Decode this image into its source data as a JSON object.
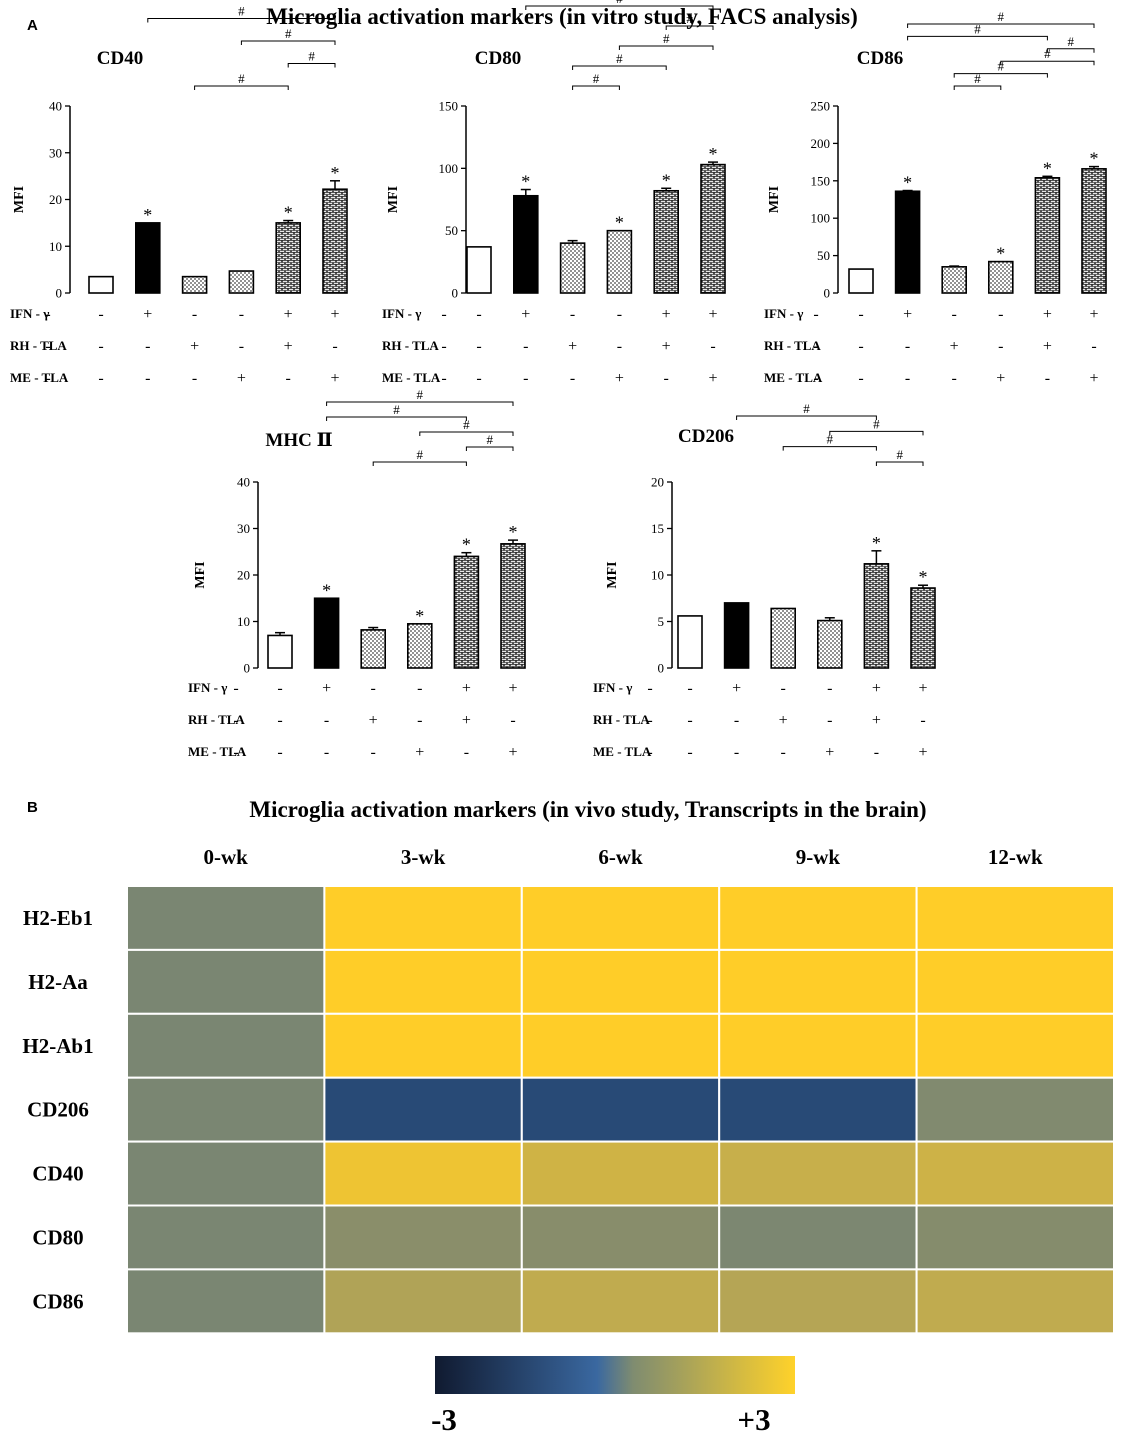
{
  "panel_a": {
    "letter": "A",
    "title": "Microglia activation markers (in vitro study, FACS analysis)",
    "treatments": [
      {
        "name": "IFN - γ",
        "signs": [
          "-",
          "+",
          "-",
          "-",
          "+",
          "+"
        ]
      },
      {
        "name": "RH - TLA",
        "signs": [
          "-",
          "-",
          "+",
          "-",
          "+",
          "-"
        ]
      },
      {
        "name": "ME - TLA",
        "signs": [
          "-",
          "-",
          "-",
          "+",
          "-",
          "+"
        ]
      }
    ]
  },
  "panel_b": {
    "letter": "B",
    "title": "Microglia activation markers (in vivo study, Transcripts in the brain)",
    "legend_min": "-3",
    "legend_max": "+3"
  },
  "colors": {
    "heat_low": "#101a30",
    "heat_mid_blue": "#3a68a0",
    "heat_neutral": "#7f8c70",
    "heat_high": "#ffd22a"
  },
  "chart_data": [
    {
      "type": "bar",
      "title": "CD40",
      "ylabel": "MFI",
      "ylim": [
        0,
        40
      ],
      "yticks": [
        0,
        10,
        20,
        30,
        40
      ],
      "values": [
        3.5,
        15,
        3.5,
        4.7,
        15,
        22.2
      ],
      "errors": [
        0,
        0,
        0,
        0,
        0.5,
        1.8
      ],
      "significant": [
        false,
        true,
        false,
        false,
        true,
        true
      ],
      "brackets": [
        {
          "from": 1,
          "to": 5,
          "label": "#"
        },
        {
          "from": 3,
          "to": 5,
          "label": "#"
        },
        {
          "from": 4,
          "to": 5,
          "label": "#"
        },
        {
          "from": 2,
          "to": 4,
          "label": "#"
        }
      ]
    },
    {
      "type": "bar",
      "title": "CD80",
      "ylabel": "MFI",
      "ylim": [
        0,
        150
      ],
      "yticks": [
        0,
        50,
        100,
        150
      ],
      "values": [
        37,
        78,
        40,
        50,
        82,
        103
      ],
      "errors": [
        0,
        5,
        2,
        0,
        2,
        2
      ],
      "significant": [
        false,
        true,
        false,
        true,
        true,
        true
      ],
      "brackets": [
        {
          "from": 1,
          "to": 5,
          "label": "#"
        },
        {
          "from": 4,
          "to": 5,
          "label": "#"
        },
        {
          "from": 3,
          "to": 5,
          "label": "#"
        },
        {
          "from": 2,
          "to": 4,
          "label": "#"
        },
        {
          "from": 2,
          "to": 3,
          "label": "#"
        }
      ]
    },
    {
      "type": "bar",
      "title": "CD86",
      "ylabel": "MFI",
      "ylim": [
        0,
        250
      ],
      "yticks": [
        0,
        50,
        100,
        150,
        200,
        250
      ],
      "values": [
        32,
        136,
        35,
        42,
        154,
        166
      ],
      "errors": [
        0,
        1,
        1,
        0,
        2,
        3
      ],
      "significant": [
        false,
        true,
        false,
        true,
        true,
        true
      ],
      "brackets": [
        {
          "from": 1,
          "to": 5,
          "label": "#"
        },
        {
          "from": 1,
          "to": 4,
          "label": "#"
        },
        {
          "from": 4,
          "to": 5,
          "label": "#"
        },
        {
          "from": 3,
          "to": 5,
          "label": "#"
        },
        {
          "from": 2,
          "to": 4,
          "label": "#"
        },
        {
          "from": 2,
          "to": 3,
          "label": "#"
        }
      ]
    },
    {
      "type": "bar",
      "title": "MHC Ⅱ",
      "ylabel": "MFI",
      "ylim": [
        0,
        40
      ],
      "yticks": [
        0,
        10,
        20,
        30,
        40
      ],
      "values": [
        7,
        15,
        8.2,
        9.5,
        24,
        26.7
      ],
      "errors": [
        0.6,
        0,
        0.5,
        0,
        0.8,
        0.8
      ],
      "significant": [
        false,
        true,
        false,
        true,
        true,
        true
      ],
      "brackets": [
        {
          "from": 1,
          "to": 5,
          "label": "#"
        },
        {
          "from": 1,
          "to": 4,
          "label": "#"
        },
        {
          "from": 3,
          "to": 5,
          "label": "#"
        },
        {
          "from": 4,
          "to": 5,
          "label": "#"
        },
        {
          "from": 2,
          "to": 4,
          "label": "#"
        }
      ]
    },
    {
      "type": "bar",
      "title": "CD206",
      "ylabel": "MFI",
      "ylim": [
        0,
        20
      ],
      "yticks": [
        0,
        5,
        10,
        15,
        20
      ],
      "values": [
        5.6,
        7,
        6.4,
        5.1,
        11.2,
        8.6
      ],
      "errors": [
        0,
        0,
        0,
        0.3,
        1.4,
        0.3
      ],
      "significant": [
        false,
        false,
        false,
        false,
        true,
        true
      ],
      "brackets": [
        {
          "from": 1,
          "to": 4,
          "label": "#"
        },
        {
          "from": 3,
          "to": 5,
          "label": "#"
        },
        {
          "from": 2,
          "to": 4,
          "label": "#"
        },
        {
          "from": 4,
          "to": 5,
          "label": "#"
        }
      ]
    },
    {
      "type": "heatmap",
      "x": [
        "0-wk",
        "3-wk",
        "6-wk",
        "9-wk",
        "12-wk"
      ],
      "y": [
        "H2-Eb1",
        "H2-Aa",
        "H2-Ab1",
        "CD206",
        "CD40",
        "CD80",
        "CD86"
      ],
      "values": [
        [
          0,
          3,
          3,
          3,
          3
        ],
        [
          0,
          3,
          3,
          3,
          3
        ],
        [
          0,
          3,
          3,
          3,
          3
        ],
        [
          0,
          -2.2,
          -2.2,
          -2.2,
          0.15
        ],
        [
          0,
          2.6,
          1.9,
          1.7,
          1.85
        ],
        [
          0,
          0.35,
          0.3,
          0.05,
          0.25
        ],
        [
          0,
          1.2,
          1.55,
          1.3,
          1.55
        ]
      ],
      "zlim": [
        -3,
        3
      ]
    }
  ]
}
